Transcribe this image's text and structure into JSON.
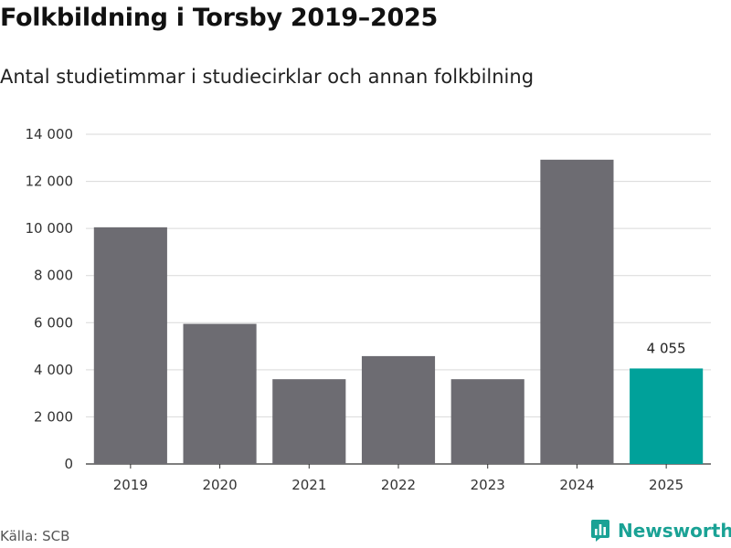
{
  "chart_data": {
    "type": "bar",
    "title": "Folkbildning i Torsby 2019–2025",
    "subtitle": "Antal studietimmar i studiecirklar och annan folkbilning",
    "categories": [
      "2019",
      "2020",
      "2021",
      "2022",
      "2023",
      "2024",
      "2025"
    ],
    "values": [
      10050,
      5950,
      3600,
      4580,
      3600,
      12920,
      4055
    ],
    "bar_colors": [
      "#6d6c72",
      "#6d6c72",
      "#6d6c72",
      "#6d6c72",
      "#6d6c72",
      "#6d6c72",
      "#00a19a"
    ],
    "data_labels": [
      null,
      null,
      null,
      null,
      null,
      null,
      "4 055"
    ],
    "yticks": [
      0,
      2000,
      4000,
      6000,
      8000,
      10000,
      12000,
      14000
    ],
    "ytick_labels": [
      "0",
      "2 000",
      "4 000",
      "6 000",
      "8 000",
      "10 000",
      "12 000",
      "14 000"
    ],
    "ylim": [
      0,
      14000
    ],
    "grid": true,
    "xlabel": "",
    "ylabel": ""
  },
  "footer": {
    "source": "Källa: SCB",
    "brand": "Newsworthy",
    "brand_color": "#1aa295"
  }
}
